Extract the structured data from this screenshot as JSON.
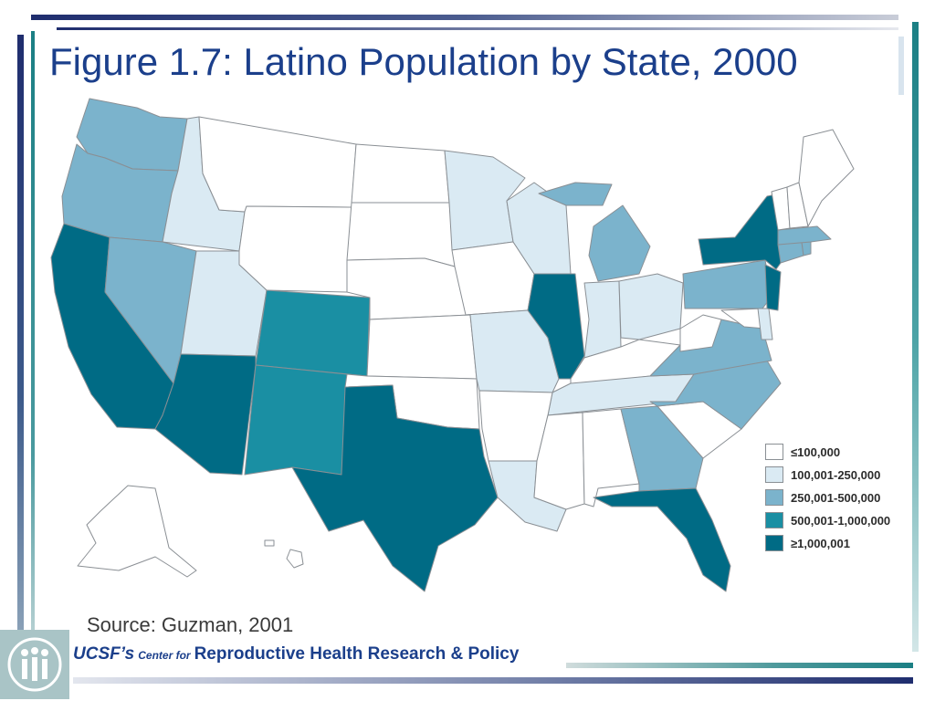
{
  "slide": {
    "title": "Figure 1.7: Latino Population by State, 2000",
    "source": "Source: Guzman, 2001",
    "footer": {
      "org": "UCSF’s",
      "center": "Center for",
      "name": "Reproductive Health Research & Policy"
    },
    "logo_icon": "people-logo-icon"
  },
  "map": {
    "colors": {
      "c1": "#ffffff",
      "c2": "#daeaf3",
      "c3": "#7bb3cc",
      "c4": "#1a8fa3",
      "c5": "#006b85"
    },
    "legend": [
      {
        "label": "≤100,000",
        "color": "#ffffff"
      },
      {
        "label": "100,001-250,000",
        "color": "#daeaf3"
      },
      {
        "label": "250,001-500,000",
        "color": "#7bb3cc"
      },
      {
        "label": "500,001-1,000,000",
        "color": "#1a8fa3"
      },
      {
        "label": "≥1,000,001",
        "color": "#006b85"
      }
    ]
  }
}
